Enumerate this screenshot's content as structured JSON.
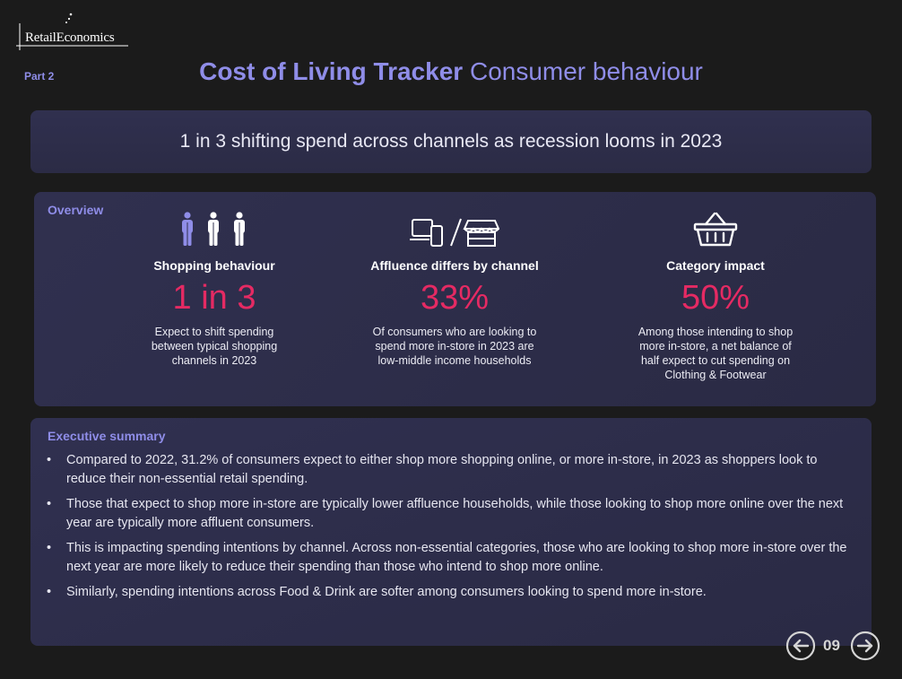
{
  "brand": {
    "logo_text": "RetailEconomics"
  },
  "header": {
    "part": "Part 2",
    "title_bold": "Cost of Living Tracker",
    "title_light": "Consumer behaviour"
  },
  "banner": {
    "headline": "1 in 3 shifting spend across channels as recession looms in 2023"
  },
  "overview": {
    "label": "Overview",
    "stats": [
      {
        "icon": "people-icon",
        "title": "Shopping behaviour",
        "value": "1 in 3",
        "description_lines": [
          "Expect to shift spending",
          "between typical shopping",
          "channels in 2023"
        ]
      },
      {
        "icon": "online-instore-icon",
        "title": "Affluence differs by channel",
        "value": "33%",
        "description_lines": [
          "Of consumers who are looking to",
          "spend more in-store in 2023 are",
          "low-middle income households"
        ]
      },
      {
        "icon": "basket-icon",
        "title": "Category impact",
        "value": "50%",
        "description_lines": [
          "Among those intending to shop",
          "more in-store, a net balance of",
          "half expect to cut spending on",
          "Clothing & Footwear"
        ]
      }
    ]
  },
  "summary": {
    "label": "Executive summary",
    "bullets": [
      "Compared to 2022, 31.2% of consumers expect to either shop more shopping online, or more in-store, in 2023 as shoppers look to reduce their non-essential retail spending.",
      "Those that expect to shop more in-store are typically lower affluence households, while those looking to shop more online over the next year are typically more affluent consumers.",
      "This is impacting spending intentions by channel. Across non-essential categories, those who are looking to shop more in-store over the next year are more likely to reduce their spending than those who intend to shop more online.",
      "Similarly, spending intentions across Food & Drink are softer among consumers looking to spend more in-store."
    ]
  },
  "pager": {
    "page": "09"
  },
  "colors": {
    "accent": "#8f8de8",
    "highlight": "#e52a63",
    "background": "#1b1b1b",
    "panel": "#2e2e4a"
  }
}
